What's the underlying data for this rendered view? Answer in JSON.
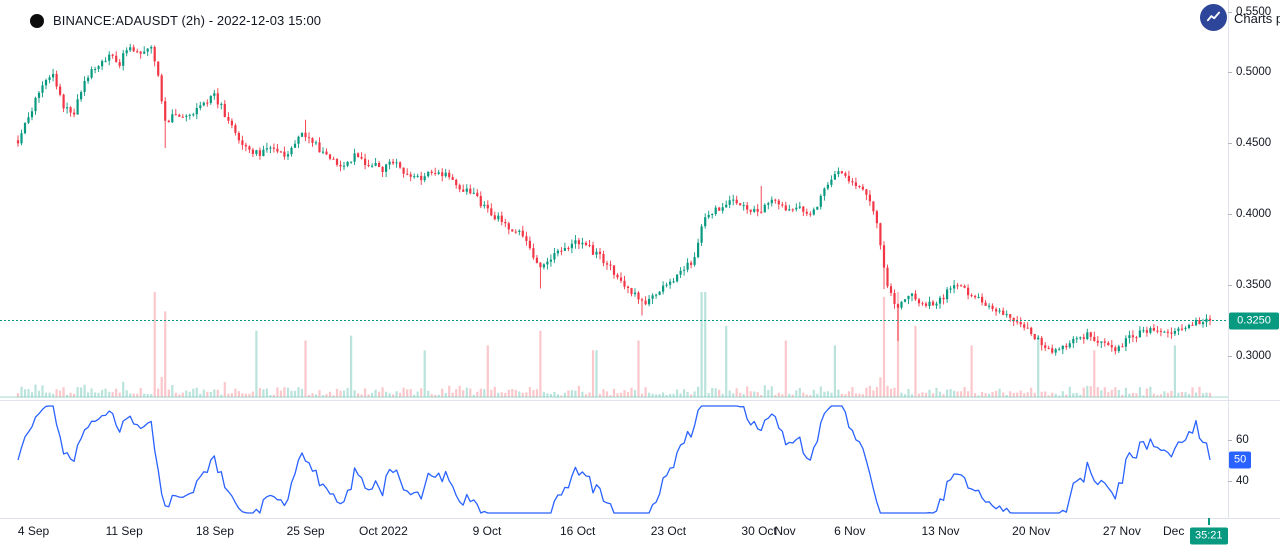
{
  "header": {
    "title": "BINANCE:ADAUSDT (2h) - 2022-12-03 15:00",
    "watermark": "Charts p"
  },
  "countdown": "35:21",
  "colors": {
    "up": "#089981",
    "down": "#f23645",
    "volume_up": "rgba(8,153,129,0.28)",
    "volume_down": "rgba(242,54,69,0.28)",
    "volume_baseline": "rgba(8,153,129,0.4)",
    "rsi_line": "#2962ff",
    "rsi_badge": "#2962ff",
    "price_badge": "#089981",
    "countdown_badge": "#089981",
    "dashed_line": "#089981",
    "logo_bg": "#2e4699",
    "axis_text": "#131722",
    "border": "#e0e3eb"
  },
  "price_axis": {
    "labels": [
      "0.5500",
      "0.5000",
      "0.4500",
      "0.4000",
      "0.3500",
      "0.3000"
    ],
    "values": [
      0.55,
      0.5,
      0.45,
      0.4,
      0.35,
      0.3
    ],
    "current": {
      "label": "0.3250",
      "value": 0.325
    }
  },
  "indicator_axis": {
    "labels": [
      "60",
      "40"
    ],
    "values": [
      60,
      40
    ],
    "current": {
      "label": "50",
      "value": 50
    }
  },
  "time_axis": {
    "labels": [
      "4 Sep",
      "11 Sep",
      "18 Sep",
      "25 Sep",
      "Oct 2022",
      "9 Oct",
      "16 Oct",
      "23 Oct",
      "30 Oct",
      "Nov",
      "6 Nov",
      "13 Nov",
      "20 Nov",
      "27 Nov",
      "Dec"
    ],
    "days": [
      1.2,
      8.2,
      15.2,
      22.2,
      28.2,
      36.2,
      43.2,
      50.2,
      57.2,
      59.2,
      64.2,
      71.2,
      78.2,
      85.2,
      89.2
    ]
  },
  "chart_data": {
    "type": "candlestick",
    "symbol": "BINANCE:ADAUSDT",
    "interval": "2h",
    "last_time": "2022-12-03 15:00",
    "last_price": 0.325,
    "day_span": 92,
    "view_ylim": [
      0.287,
      0.553
    ],
    "price_path": [
      [
        0,
        0.452
      ],
      [
        0.8,
        0.468
      ],
      [
        1.6,
        0.486
      ],
      [
        2.6,
        0.5
      ],
      [
        3.4,
        0.478
      ],
      [
        4.2,
        0.468
      ],
      [
        5,
        0.49
      ],
      [
        6,
        0.504
      ],
      [
        7,
        0.512
      ],
      [
        7.8,
        0.506
      ],
      [
        8.6,
        0.519
      ],
      [
        9.4,
        0.513
      ],
      [
        10.2,
        0.52
      ],
      [
        10.8,
        0.5
      ],
      [
        11.4,
        0.462
      ],
      [
        12.2,
        0.472
      ],
      [
        13,
        0.468
      ],
      [
        14,
        0.477
      ],
      [
        15.2,
        0.483
      ],
      [
        16,
        0.47
      ],
      [
        17,
        0.452
      ],
      [
        18.5,
        0.442
      ],
      [
        19.5,
        0.448
      ],
      [
        20.5,
        0.44
      ],
      [
        22,
        0.456
      ],
      [
        23,
        0.448
      ],
      [
        24,
        0.44
      ],
      [
        25,
        0.435
      ],
      [
        26,
        0.441
      ],
      [
        27,
        0.436
      ],
      [
        28.2,
        0.431
      ],
      [
        29,
        0.437
      ],
      [
        30,
        0.428
      ],
      [
        31,
        0.425
      ],
      [
        32,
        0.431
      ],
      [
        33,
        0.427
      ],
      [
        34,
        0.42
      ],
      [
        35,
        0.415
      ],
      [
        36.2,
        0.402
      ],
      [
        37,
        0.397
      ],
      [
        38,
        0.391
      ],
      [
        39.2,
        0.384
      ],
      [
        40.2,
        0.36
      ],
      [
        41,
        0.368
      ],
      [
        42,
        0.374
      ],
      [
        43.2,
        0.38
      ],
      [
        44.2,
        0.375
      ],
      [
        45,
        0.369
      ],
      [
        46,
        0.359
      ],
      [
        47.2,
        0.346
      ],
      [
        48.2,
        0.337
      ],
      [
        49.2,
        0.343
      ],
      [
        50.2,
        0.352
      ],
      [
        51.2,
        0.358
      ],
      [
        52.2,
        0.369
      ],
      [
        52.9,
        0.398
      ],
      [
        54,
        0.404
      ],
      [
        55,
        0.411
      ],
      [
        56,
        0.405
      ],
      [
        57.2,
        0.4
      ],
      [
        58.2,
        0.409
      ],
      [
        59.2,
        0.402
      ],
      [
        60.2,
        0.406
      ],
      [
        61.2,
        0.4
      ],
      [
        62.2,
        0.415
      ],
      [
        63.2,
        0.429
      ],
      [
        64.2,
        0.424
      ],
      [
        65.2,
        0.419
      ],
      [
        66.2,
        0.4
      ],
      [
        67,
        0.353
      ],
      [
        67.8,
        0.331
      ],
      [
        68.7,
        0.345
      ],
      [
        69.7,
        0.337
      ],
      [
        70.7,
        0.335
      ],
      [
        71.7,
        0.345
      ],
      [
        72.7,
        0.351
      ],
      [
        73.7,
        0.342
      ],
      [
        74.7,
        0.337
      ],
      [
        75.7,
        0.331
      ],
      [
        76.7,
        0.327
      ],
      [
        77.7,
        0.321
      ],
      [
        78.7,
        0.311
      ],
      [
        79.7,
        0.302
      ],
      [
        80.7,
        0.307
      ],
      [
        81.7,
        0.312
      ],
      [
        82.7,
        0.315
      ],
      [
        83.7,
        0.31
      ],
      [
        84.7,
        0.306
      ],
      [
        85.7,
        0.312
      ],
      [
        86.7,
        0.317
      ],
      [
        87.7,
        0.32
      ],
      [
        88.7,
        0.316
      ],
      [
        89.7,
        0.32
      ],
      [
        90.8,
        0.323
      ],
      [
        92,
        0.325
      ]
    ],
    "wick_events": [
      [
        11.4,
        -0.016
      ],
      [
        22.2,
        0.009
      ],
      [
        40.2,
        -0.013
      ],
      [
        48.2,
        -0.009
      ],
      [
        57.4,
        0.016
      ],
      [
        66.9,
        -0.012
      ],
      [
        67.8,
        -0.02
      ]
    ],
    "volume_spikes": [
      [
        10.6,
        1
      ],
      [
        11.4,
        0.8
      ],
      [
        18.3,
        0.6
      ],
      [
        22.2,
        0.5
      ],
      [
        25.8,
        0.55
      ],
      [
        31.5,
        0.4
      ],
      [
        36.2,
        0.45
      ],
      [
        40.2,
        0.6
      ],
      [
        44.5,
        0.4
      ],
      [
        48,
        0.5
      ],
      [
        52.9,
        1
      ],
      [
        54.6,
        0.65
      ],
      [
        59.3,
        0.5
      ],
      [
        63,
        0.45
      ],
      [
        66.9,
        0.95
      ],
      [
        67.8,
        1
      ],
      [
        69.3,
        0.65
      ],
      [
        73.5,
        0.45
      ],
      [
        78.8,
        0.55
      ],
      [
        83,
        0.4
      ],
      [
        89.3,
        0.45
      ]
    ],
    "indicator": {
      "type": "oscillator-line",
      "visible_labels": [
        60,
        50,
        40
      ],
      "last_value": 50
    }
  }
}
